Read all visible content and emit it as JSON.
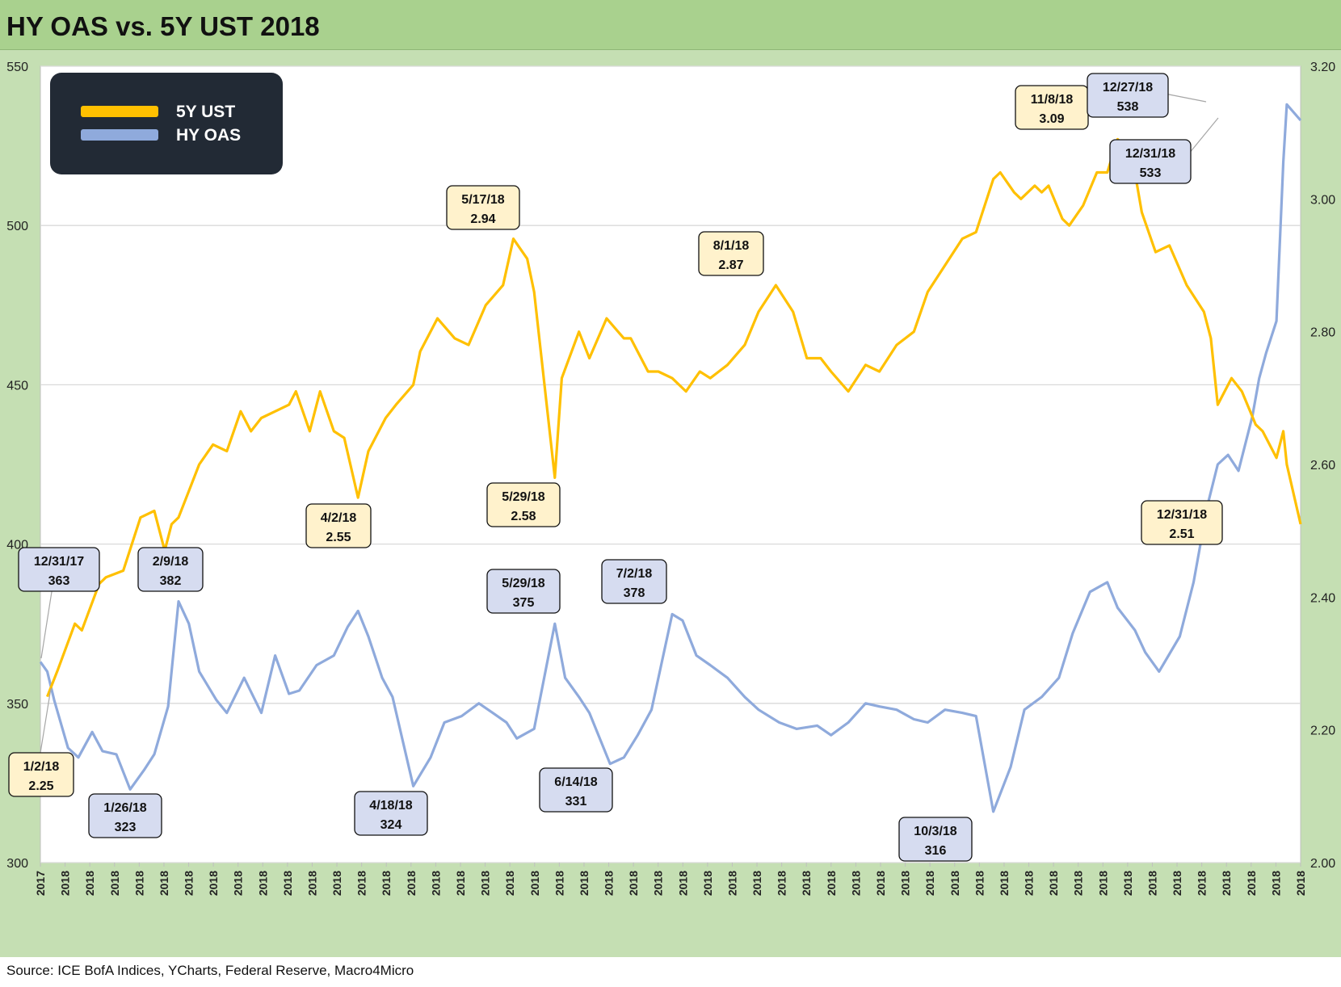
{
  "title": "HY OAS vs. 5Y UST 2018",
  "source": "Source: ICE BofA Indices, YCharts, Federal Reserve, Macro4Micro",
  "colors": {
    "ust": "#ffc000",
    "oas": "#8faadc",
    "ust_label_bg": "#fff2cc",
    "oas_label_bg": "#d6dcf0",
    "legend_bg": "#222a35"
  },
  "chart_data": {
    "type": "line",
    "title": "HY OAS vs. 5Y UST 2018",
    "grid": true,
    "legend": {
      "position": "top-left",
      "entries": [
        "5Y UST",
        "HY OAS"
      ]
    },
    "x_tick_labels": [
      "2017",
      "2018",
      "2018",
      "2018",
      "2018",
      "2018",
      "2018",
      "2018",
      "2018",
      "2018",
      "2018",
      "2018",
      "2018",
      "2018",
      "2018",
      "2018",
      "2018",
      "2018",
      "2018",
      "2018",
      "2018",
      "2018",
      "2018",
      "2018",
      "2018",
      "2018",
      "2018",
      "2018",
      "2018",
      "2018",
      "2018",
      "2018",
      "2018",
      "2018",
      "2018",
      "2018",
      "2018",
      "2018",
      "2018",
      "2018",
      "2018",
      "2018",
      "2018",
      "2018",
      "2018",
      "2018",
      "2018",
      "2018",
      "2018",
      "2018",
      "2018",
      "2018"
    ],
    "y_left": {
      "label": "",
      "lim": [
        300,
        550
      ],
      "ticks": [
        300,
        350,
        400,
        450,
        500,
        550
      ]
    },
    "y_right": {
      "label": "",
      "lim": [
        2.0,
        3.2
      ],
      "ticks": [
        "2.00",
        "2.20",
        "2.40",
        "2.60",
        "2.80",
        "3.00",
        "3.20"
      ]
    },
    "series": [
      {
        "name": "5Y UST",
        "axis": "right",
        "points": [
          [
            "2018-01-02",
            2.25
          ],
          [
            "2018-01-05",
            2.29
          ],
          [
            "2018-01-10",
            2.36
          ],
          [
            "2018-01-12",
            2.35
          ],
          [
            "2018-01-17",
            2.42
          ],
          [
            "2018-01-19",
            2.43
          ],
          [
            "2018-01-24",
            2.44
          ],
          [
            "2018-01-29",
            2.52
          ],
          [
            "2018-02-02",
            2.53
          ],
          [
            "2018-02-05",
            2.47
          ],
          [
            "2018-02-07",
            2.51
          ],
          [
            "2018-02-09",
            2.52
          ],
          [
            "2018-02-12",
            2.56
          ],
          [
            "2018-02-15",
            2.6
          ],
          [
            "2018-02-19",
            2.63
          ],
          [
            "2018-02-23",
            2.62
          ],
          [
            "2018-02-27",
            2.68
          ],
          [
            "2018-03-02",
            2.65
          ],
          [
            "2018-03-05",
            2.67
          ],
          [
            "2018-03-09",
            2.68
          ],
          [
            "2018-03-13",
            2.69
          ],
          [
            "2018-03-15",
            2.71
          ],
          [
            "2018-03-19",
            2.65
          ],
          [
            "2018-03-22",
            2.71
          ],
          [
            "2018-03-26",
            2.65
          ],
          [
            "2018-03-29",
            2.64
          ],
          [
            "2018-04-02",
            2.55
          ],
          [
            "2018-04-05",
            2.62
          ],
          [
            "2018-04-10",
            2.67
          ],
          [
            "2018-04-13",
            2.69
          ],
          [
            "2018-04-18",
            2.72
          ],
          [
            "2018-04-20",
            2.77
          ],
          [
            "2018-04-25",
            2.82
          ],
          [
            "2018-04-30",
            2.79
          ],
          [
            "2018-05-04",
            2.78
          ],
          [
            "2018-05-09",
            2.84
          ],
          [
            "2018-05-14",
            2.87
          ],
          [
            "2018-05-17",
            2.94
          ],
          [
            "2018-05-21",
            2.91
          ],
          [
            "2018-05-23",
            2.86
          ],
          [
            "2018-05-29",
            2.58
          ],
          [
            "2018-05-31",
            2.73
          ],
          [
            "2018-06-05",
            2.8
          ],
          [
            "2018-06-08",
            2.76
          ],
          [
            "2018-06-13",
            2.82
          ],
          [
            "2018-06-18",
            2.79
          ],
          [
            "2018-06-20",
            2.79
          ],
          [
            "2018-06-25",
            2.74
          ],
          [
            "2018-06-28",
            2.74
          ],
          [
            "2018-07-02",
            2.73
          ],
          [
            "2018-07-06",
            2.71
          ],
          [
            "2018-07-10",
            2.74
          ],
          [
            "2018-07-13",
            2.73
          ],
          [
            "2018-07-18",
            2.75
          ],
          [
            "2018-07-23",
            2.78
          ],
          [
            "2018-07-27",
            2.83
          ],
          [
            "2018-08-01",
            2.87
          ],
          [
            "2018-08-06",
            2.83
          ],
          [
            "2018-08-10",
            2.76
          ],
          [
            "2018-08-14",
            2.76
          ],
          [
            "2018-08-17",
            2.74
          ],
          [
            "2018-08-22",
            2.71
          ],
          [
            "2018-08-27",
            2.75
          ],
          [
            "2018-08-31",
            2.74
          ],
          [
            "2018-09-05",
            2.78
          ],
          [
            "2018-09-10",
            2.8
          ],
          [
            "2018-09-14",
            2.86
          ],
          [
            "2018-09-19",
            2.9
          ],
          [
            "2018-09-24",
            2.94
          ],
          [
            "2018-09-28",
            2.95
          ],
          [
            "2018-10-03",
            3.03
          ],
          [
            "2018-10-05",
            3.04
          ],
          [
            "2018-10-09",
            3.01
          ],
          [
            "2018-10-11",
            3.0
          ],
          [
            "2018-10-15",
            3.02
          ],
          [
            "2018-10-17",
            3.01
          ],
          [
            "2018-10-19",
            3.02
          ],
          [
            "2018-10-23",
            2.97
          ],
          [
            "2018-10-25",
            2.96
          ],
          [
            "2018-10-29",
            2.99
          ],
          [
            "2018-11-02",
            3.04
          ],
          [
            "2018-11-05",
            3.04
          ],
          [
            "2018-11-08",
            3.09
          ],
          [
            "2018-11-12",
            3.07
          ],
          [
            "2018-11-15",
            2.98
          ],
          [
            "2018-11-19",
            2.92
          ],
          [
            "2018-11-23",
            2.93
          ],
          [
            "2018-11-28",
            2.87
          ],
          [
            "2018-12-03",
            2.83
          ],
          [
            "2018-12-05",
            2.79
          ],
          [
            "2018-12-07",
            2.69
          ],
          [
            "2018-12-11",
            2.73
          ],
          [
            "2018-12-14",
            2.71
          ],
          [
            "2018-12-18",
            2.66
          ],
          [
            "2018-12-20",
            2.65
          ],
          [
            "2018-12-24",
            2.61
          ],
          [
            "2018-12-26",
            2.65
          ],
          [
            "2018-12-27",
            2.6
          ],
          [
            "2018-12-31",
            2.51
          ]
        ]
      },
      {
        "name": "HY OAS",
        "axis": "left",
        "points": [
          [
            "2017-12-31",
            363
          ],
          [
            "2018-01-02",
            360
          ],
          [
            "2018-01-04",
            351
          ],
          [
            "2018-01-08",
            336
          ],
          [
            "2018-01-11",
            333
          ],
          [
            "2018-01-15",
            341
          ],
          [
            "2018-01-18",
            335
          ],
          [
            "2018-01-22",
            334
          ],
          [
            "2018-01-26",
            323
          ],
          [
            "2018-01-30",
            329
          ],
          [
            "2018-02-02",
            334
          ],
          [
            "2018-02-06",
            349
          ],
          [
            "2018-02-09",
            382
          ],
          [
            "2018-02-12",
            375
          ],
          [
            "2018-02-15",
            360
          ],
          [
            "2018-02-20",
            351
          ],
          [
            "2018-02-23",
            347
          ],
          [
            "2018-02-28",
            358
          ],
          [
            "2018-03-05",
            347
          ],
          [
            "2018-03-09",
            365
          ],
          [
            "2018-03-13",
            353
          ],
          [
            "2018-03-16",
            354
          ],
          [
            "2018-03-21",
            362
          ],
          [
            "2018-03-26",
            365
          ],
          [
            "2018-03-30",
            374
          ],
          [
            "2018-04-02",
            379
          ],
          [
            "2018-04-05",
            371
          ],
          [
            "2018-04-09",
            358
          ],
          [
            "2018-04-12",
            352
          ],
          [
            "2018-04-18",
            324
          ],
          [
            "2018-04-23",
            333
          ],
          [
            "2018-04-27",
            344
          ],
          [
            "2018-05-02",
            346
          ],
          [
            "2018-05-07",
            350
          ],
          [
            "2018-05-11",
            347
          ],
          [
            "2018-05-15",
            344
          ],
          [
            "2018-05-18",
            339
          ],
          [
            "2018-05-23",
            342
          ],
          [
            "2018-05-29",
            375
          ],
          [
            "2018-06-01",
            358
          ],
          [
            "2018-06-05",
            352
          ],
          [
            "2018-06-08",
            347
          ],
          [
            "2018-06-14",
            331
          ],
          [
            "2018-06-18",
            333
          ],
          [
            "2018-06-22",
            340
          ],
          [
            "2018-06-26",
            348
          ],
          [
            "2018-07-02",
            378
          ],
          [
            "2018-07-05",
            376
          ],
          [
            "2018-07-09",
            365
          ],
          [
            "2018-07-13",
            362
          ],
          [
            "2018-07-18",
            358
          ],
          [
            "2018-07-23",
            352
          ],
          [
            "2018-07-27",
            348
          ],
          [
            "2018-08-02",
            344
          ],
          [
            "2018-08-07",
            342
          ],
          [
            "2018-08-13",
            343
          ],
          [
            "2018-08-17",
            340
          ],
          [
            "2018-08-22",
            344
          ],
          [
            "2018-08-27",
            350
          ],
          [
            "2018-08-31",
            349
          ],
          [
            "2018-09-05",
            348
          ],
          [
            "2018-09-10",
            345
          ],
          [
            "2018-09-14",
            344
          ],
          [
            "2018-09-19",
            348
          ],
          [
            "2018-09-24",
            347
          ],
          [
            "2018-09-28",
            346
          ],
          [
            "2018-10-03",
            316
          ],
          [
            "2018-10-08",
            330
          ],
          [
            "2018-10-12",
            348
          ],
          [
            "2018-10-17",
            352
          ],
          [
            "2018-10-22",
            358
          ],
          [
            "2018-10-26",
            372
          ],
          [
            "2018-10-31",
            385
          ],
          [
            "2018-11-05",
            388
          ],
          [
            "2018-11-08",
            380
          ],
          [
            "2018-11-13",
            373
          ],
          [
            "2018-11-16",
            366
          ],
          [
            "2018-11-20",
            360
          ],
          [
            "2018-11-26",
            371
          ],
          [
            "2018-11-30",
            388
          ],
          [
            "2018-12-04",
            412
          ],
          [
            "2018-12-07",
            425
          ],
          [
            "2018-12-10",
            428
          ],
          [
            "2018-12-13",
            423
          ],
          [
            "2018-12-17",
            440
          ],
          [
            "2018-12-19",
            452
          ],
          [
            "2018-12-21",
            460
          ],
          [
            "2018-12-24",
            470
          ],
          [
            "2018-12-26",
            520
          ],
          [
            "2018-12-27",
            538
          ],
          [
            "2018-12-31",
            533
          ]
        ]
      }
    ],
    "annotations": [
      {
        "series": "5Y UST",
        "date": "1/2/18",
        "value": "2.25"
      },
      {
        "series": "5Y UST",
        "date": "4/2/18",
        "value": "2.55"
      },
      {
        "series": "5Y UST",
        "date": "5/17/18",
        "value": "2.94"
      },
      {
        "series": "5Y UST",
        "date": "5/29/18",
        "value": "2.58"
      },
      {
        "series": "5Y UST",
        "date": "8/1/18",
        "value": "2.87"
      },
      {
        "series": "5Y UST",
        "date": "11/8/18",
        "value": "3.09"
      },
      {
        "series": "5Y UST",
        "date": "12/31/18",
        "value": "2.51"
      },
      {
        "series": "HY OAS",
        "date": "12/31/17",
        "value": "363"
      },
      {
        "series": "HY OAS",
        "date": "1/26/18",
        "value": "323"
      },
      {
        "series": "HY OAS",
        "date": "2/9/18",
        "value": "382"
      },
      {
        "series": "HY OAS",
        "date": "4/18/18",
        "value": "324"
      },
      {
        "series": "HY OAS",
        "date": "5/29/18",
        "value": "375"
      },
      {
        "series": "HY OAS",
        "date": "6/14/18",
        "value": "331"
      },
      {
        "series": "HY OAS",
        "date": "7/2/18",
        "value": "378"
      },
      {
        "series": "HY OAS",
        "date": "10/3/18",
        "value": "316"
      },
      {
        "series": "HY OAS",
        "date": "12/27/18",
        "value": "538"
      },
      {
        "series": "HY OAS",
        "date": "12/31/18",
        "value": "533"
      }
    ]
  }
}
